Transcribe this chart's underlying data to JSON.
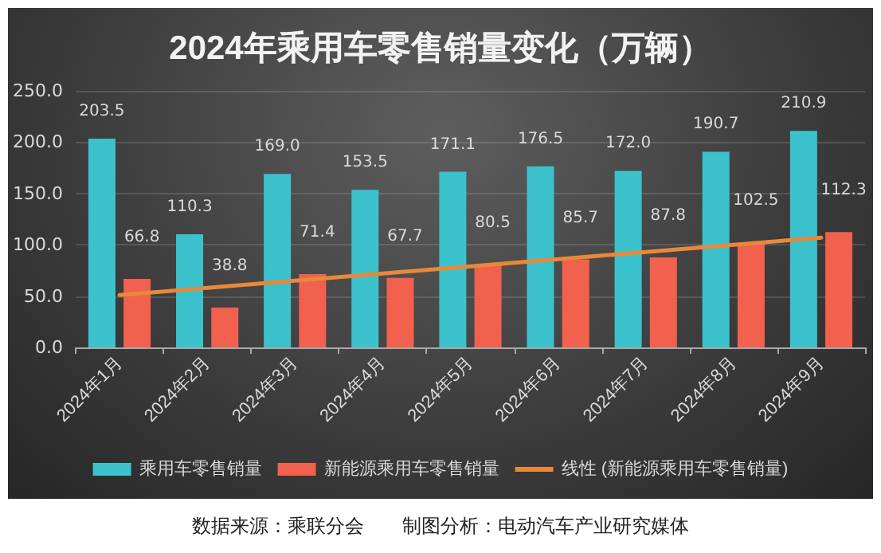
{
  "chart_data": {
    "type": "bar",
    "title": "2024年乘用车零售销量变化（万辆）",
    "categories": [
      "2024年1月",
      "2024年2月",
      "2024年3月",
      "2024年4月",
      "2024年5月",
      "2024年6月",
      "2024年7月",
      "2024年8月",
      "2024年9月"
    ],
    "series": [
      {
        "name": "乘用车零售销量",
        "color": "#3cc2cc",
        "values": [
          203.5,
          110.3,
          169.0,
          153.5,
          171.1,
          176.5,
          172.0,
          190.7,
          210.9
        ],
        "value_labels": [
          "203.5",
          "110.3",
          "169.0",
          "153.5",
          "171.1",
          "176.5",
          "172.0",
          "190.7",
          "210.9"
        ]
      },
      {
        "name": "新能源乘用车零售销量",
        "color": "#f1614e",
        "values": [
          66.8,
          38.8,
          71.4,
          67.7,
          80.5,
          85.7,
          87.8,
          102.5,
          112.3
        ],
        "value_labels": [
          "66.8",
          "38.8",
          "71.4",
          "67.7",
          "80.5",
          "85.7",
          "87.8",
          "102.5",
          "112.3"
        ]
      },
      {
        "name": "线性 (新能源乘用车零售销量)",
        "type": "line",
        "color": "#e8893a",
        "marker": "none",
        "line_style": "solid",
        "values": [
          51,
          58,
          65,
          72,
          79,
          86,
          93,
          100,
          107
        ]
      }
    ],
    "ylim": [
      0,
      250
    ],
    "yticks": [
      {
        "value": 0,
        "label": "0.0"
      },
      {
        "value": 50,
        "label": "50.0"
      },
      {
        "value": 100,
        "label": "100.0"
      },
      {
        "value": 150,
        "label": "150.0"
      },
      {
        "value": 200,
        "label": "200.0"
      },
      {
        "value": 250,
        "label": "250.0"
      }
    ],
    "grid": "y",
    "legend": "bottom",
    "annotations": [
      "数据来源：乘联分会",
      "制图分析：电动汽车产业研究媒体"
    ]
  }
}
